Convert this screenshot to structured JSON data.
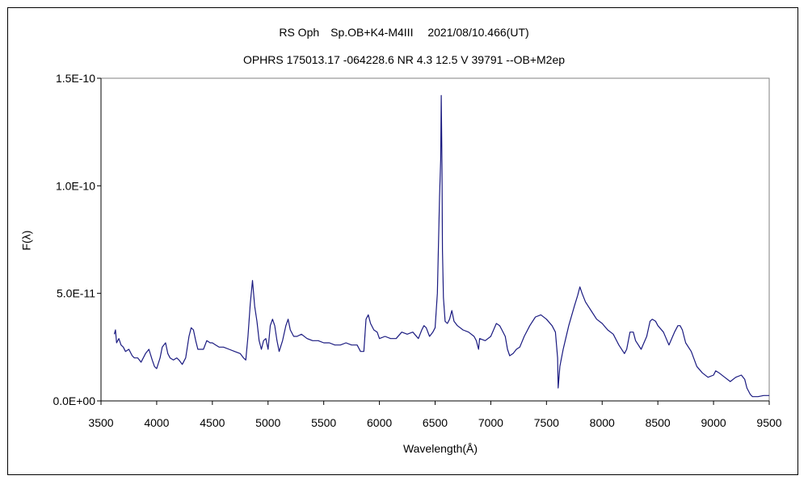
{
  "chart_data": {
    "type": "line",
    "title": "RS Oph　Sp.OB+K4-M4III　 2021/08/10.466(UT)",
    "subtitle": "OPHRS 175013.17 -064228.6 NR 4.3 12.5 V 39791 --OB+M2ep",
    "xlabel": "Wavelength(Å)",
    "ylabel": "F(λ)",
    "xlim": [
      3500,
      9500
    ],
    "ylim": [
      0,
      1.5e-10
    ],
    "xticks": [
      "3500",
      "4000",
      "4500",
      "5000",
      "5500",
      "6000",
      "6500",
      "7000",
      "7500",
      "8000",
      "8500",
      "9000",
      "9500"
    ],
    "yticks": [
      "0.0E+00",
      "5.0E-11",
      "1.0E-10",
      "1.5E-10"
    ],
    "grid": false,
    "line_color": "#1a1a80",
    "series": [
      {
        "x": [
          3620,
          3630,
          3640,
          3660,
          3680,
          3700,
          3720,
          3750,
          3780,
          3800,
          3830,
          3860,
          3900,
          3930,
          3960,
          3980,
          4000,
          4030,
          4050,
          4080,
          4100,
          4120,
          4150,
          4180,
          4200,
          4230,
          4260,
          4290,
          4310,
          4330,
          4350,
          4370,
          4400,
          4420,
          4450,
          4480,
          4500,
          4530,
          4560,
          4600,
          4650,
          4700,
          4750,
          4780,
          4800,
          4820,
          4840,
          4860,
          4880,
          4900,
          4920,
          4940,
          4960,
          4980,
          5000,
          5020,
          5040,
          5060,
          5080,
          5100,
          5130,
          5160,
          5180,
          5200,
          5230,
          5260,
          5300,
          5350,
          5400,
          5450,
          5500,
          5550,
          5600,
          5650,
          5700,
          5750,
          5800,
          5830,
          5860,
          5880,
          5900,
          5920,
          5950,
          5980,
          6000,
          6050,
          6100,
          6150,
          6200,
          6250,
          6300,
          6350,
          6380,
          6400,
          6420,
          6450,
          6480,
          6500,
          6520,
          6540,
          6550,
          6555,
          6562,
          6566,
          6575,
          6590,
          6610,
          6630,
          6650,
          6670,
          6700,
          6750,
          6800,
          6850,
          6870,
          6880,
          6890,
          6900,
          6950,
          7000,
          7050,
          7080,
          7100,
          7130,
          7150,
          7170,
          7200,
          7230,
          7260,
          7300,
          7350,
          7400,
          7450,
          7500,
          7550,
          7580,
          7600,
          7605,
          7620,
          7650,
          7700,
          7750,
          7780,
          7800,
          7820,
          7850,
          7900,
          7950,
          8000,
          8050,
          8100,
          8150,
          8200,
          8220,
          8250,
          8280,
          8300,
          8350,
          8400,
          8430,
          8450,
          8480,
          8500,
          8550,
          8600,
          8650,
          8680,
          8700,
          8720,
          8750,
          8800,
          8850,
          8900,
          8950,
          9000,
          9020,
          9050,
          9100,
          9150,
          9200,
          9250,
          9280,
          9300,
          9330,
          9350,
          9400,
          9450,
          9500
        ],
        "y": [
          3.1e-11,
          3.3e-11,
          2.7e-11,
          2.9e-11,
          2.6e-11,
          2.5e-11,
          2.3e-11,
          2.4e-11,
          2.1e-11,
          2e-11,
          2e-11,
          1.8e-11,
          2.2e-11,
          2.4e-11,
          1.9e-11,
          1.6e-11,
          1.5e-11,
          2e-11,
          2.5e-11,
          2.7e-11,
          2.2e-11,
          2e-11,
          1.9e-11,
          2e-11,
          1.9e-11,
          1.7e-11,
          2e-11,
          3e-11,
          3.4e-11,
          3.3e-11,
          2.8e-11,
          2.4e-11,
          2.4e-11,
          2.4e-11,
          2.8e-11,
          2.7e-11,
          2.7e-11,
          2.6e-11,
          2.5e-11,
          2.5e-11,
          2.4e-11,
          2.3e-11,
          2.2e-11,
          2e-11,
          1.9e-11,
          3e-11,
          4.5e-11,
          5.6e-11,
          4.4e-11,
          3.7e-11,
          2.8e-11,
          2.4e-11,
          2.8e-11,
          2.9e-11,
          2.4e-11,
          3.5e-11,
          3.8e-11,
          3.5e-11,
          2.8e-11,
          2.3e-11,
          2.8e-11,
          3.5e-11,
          3.8e-11,
          3.3e-11,
          3e-11,
          3e-11,
          3.1e-11,
          2.9e-11,
          2.8e-11,
          2.8e-11,
          2.7e-11,
          2.7e-11,
          2.6e-11,
          2.6e-11,
          2.7e-11,
          2.6e-11,
          2.6e-11,
          2.3e-11,
          2.3e-11,
          3.8e-11,
          4e-11,
          3.6e-11,
          3.3e-11,
          3.2e-11,
          2.9e-11,
          3e-11,
          2.9e-11,
          2.9e-11,
          3.2e-11,
          3.1e-11,
          3.2e-11,
          2.9e-11,
          3.3e-11,
          3.5e-11,
          3.4e-11,
          3e-11,
          3.2e-11,
          3.4e-11,
          5e-11,
          9.5e-11,
          1.12e-10,
          1.42e-10,
          1.1e-10,
          7e-11,
          4.8e-11,
          3.7e-11,
          3.6e-11,
          3.8e-11,
          4.2e-11,
          3.7e-11,
          3.5e-11,
          3.3e-11,
          3.2e-11,
          3e-11,
          2.8e-11,
          2.6e-11,
          2.4e-11,
          2.9e-11,
          2.8e-11,
          3e-11,
          3.6e-11,
          3.5e-11,
          3.3e-11,
          3e-11,
          2.4e-11,
          2.1e-11,
          2.2e-11,
          2.4e-11,
          2.5e-11,
          3e-11,
          3.5e-11,
          3.9e-11,
          4e-11,
          3.8e-11,
          3.5e-11,
          3.2e-11,
          2e-11,
          6e-12,
          1.6e-11,
          2.4e-11,
          3.5e-11,
          4.4e-11,
          4.9e-11,
          5.3e-11,
          5e-11,
          4.6e-11,
          4.2e-11,
          3.8e-11,
          3.6e-11,
          3.3e-11,
          3.1e-11,
          2.6e-11,
          2.2e-11,
          2.4e-11,
          3.2e-11,
          3.2e-11,
          2.8e-11,
          2.4e-11,
          3e-11,
          3.7e-11,
          3.8e-11,
          3.7e-11,
          3.5e-11,
          3.2e-11,
          2.6e-11,
          3.2e-11,
          3.5e-11,
          3.5e-11,
          3.3e-11,
          2.7e-11,
          2.3e-11,
          1.6e-11,
          1.3e-11,
          1.1e-11,
          1.2e-11,
          1.4e-11,
          1.3e-11,
          1.1e-11,
          9e-12,
          1.1e-11,
          1.2e-11,
          1e-11,
          6e-12,
          3e-12,
          2e-12,
          2e-12,
          2.5e-12,
          2.5e-12
        ]
      }
    ]
  }
}
